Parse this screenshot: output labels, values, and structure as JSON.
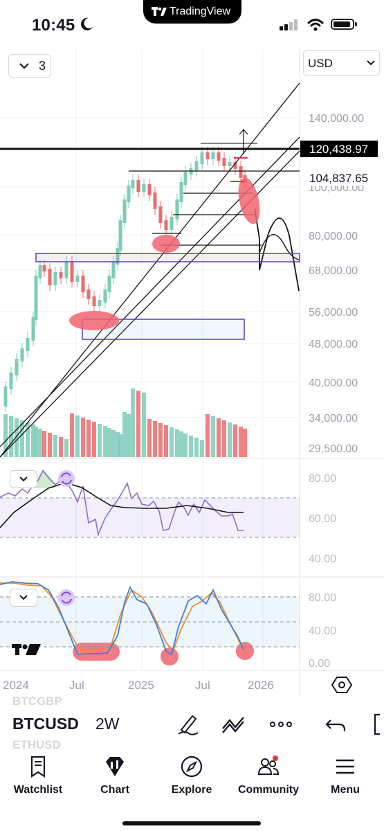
{
  "status_bar": {
    "time": "10:45",
    "app_pill": "TradingView"
  },
  "chart": {
    "interval_button": "3",
    "currency": "USD",
    "price_axis_labels": [
      "140,000.00",
      "100,000.00",
      "80,000.00",
      "68,000.00",
      "56,000.00",
      "48,000.00",
      "40,000.00",
      "34,000.00",
      "29,500.00"
    ],
    "last_price_label": "120,438.97",
    "level_label": "104,837.65",
    "rsi_axis_labels": [
      "80.00",
      "60.00",
      "40.00"
    ],
    "stoch_axis_labels": [
      "80.00",
      "40.00",
      "0.00"
    ],
    "time_axis_labels": [
      "2024",
      "Jul",
      "2025",
      "Jul",
      "2026"
    ]
  },
  "colors": {
    "bull": "#7ecbb8",
    "bear": "#ee6b6b",
    "rsi_line": "#8e6cc8",
    "stoch_k": "#3d7ee0",
    "stoch_d": "#f28a2a",
    "highlight": "#f06470"
  },
  "toolbar": {
    "symbol": "BTCUSD",
    "interval": "2W",
    "ghost_above": "BTCGBP",
    "ghost_below": "ETHUSD"
  },
  "nav": {
    "watchlist": "Watchlist",
    "chart": "Chart",
    "explore": "Explore",
    "community": "Community",
    "menu": "Menu"
  }
}
